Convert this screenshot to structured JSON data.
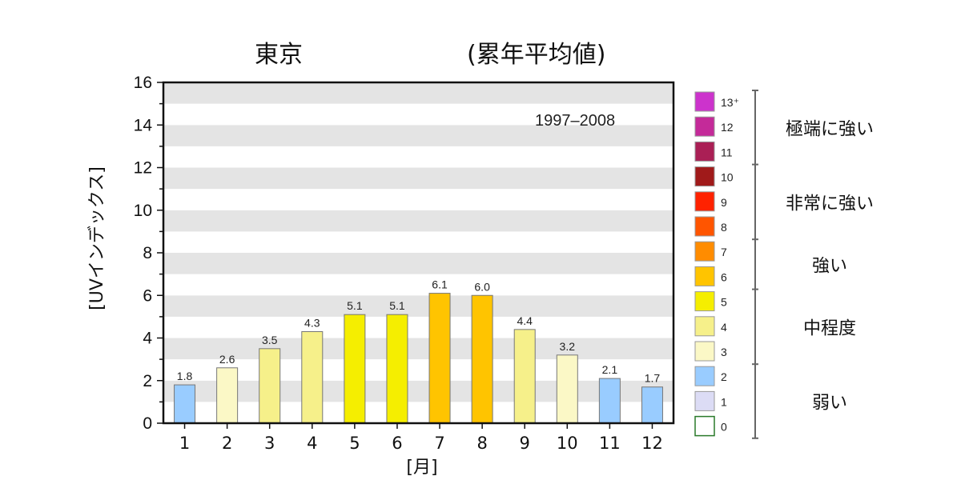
{
  "chart_data": {
    "type": "bar",
    "title": "東京",
    "subtitle": "(累年平均値)",
    "period": "1997–2008",
    "xlabel": "[月]",
    "ylabel": "[UVインデックス]",
    "ylim": [
      0,
      16
    ],
    "y_ticks": [
      "0",
      "2",
      "4",
      "6",
      "8",
      "10",
      "12",
      "14",
      "16"
    ],
    "categories": [
      "1",
      "2",
      "3",
      "4",
      "5",
      "6",
      "7",
      "8",
      "9",
      "10",
      "11",
      "12"
    ],
    "values": [
      1.8,
      2.6,
      3.5,
      4.3,
      5.1,
      5.1,
      6.1,
      6.0,
      4.4,
      3.2,
      2.1,
      1.7
    ],
    "value_labels": [
      "1.8",
      "2.6",
      "3.5",
      "4.3",
      "5.1",
      "5.1",
      "6.1",
      "6.0",
      "4.4",
      "3.2",
      "2.1",
      "1.7"
    ],
    "grid": "horizontal bands",
    "legend_position": "right",
    "legend": {
      "scale": [
        {
          "label": "13⁺",
          "color": "#cc33cc"
        },
        {
          "label": "12",
          "color": "#c42a99"
        },
        {
          "label": "11",
          "color": "#aa1f55"
        },
        {
          "label": "10",
          "color": "#a01a1a"
        },
        {
          "label": "9",
          "color": "#ff2200"
        },
        {
          "label": "8",
          "color": "#ff5500"
        },
        {
          "label": "7",
          "color": "#ff8c00"
        },
        {
          "label": "6",
          "color": "#ffc400"
        },
        {
          "label": "5",
          "color": "#f5ee00"
        },
        {
          "label": "4",
          "color": "#f6f08a"
        },
        {
          "label": "3",
          "color": "#fbf8c6"
        },
        {
          "label": "2",
          "color": "#99ccff"
        },
        {
          "label": "1",
          "color": "#dcdcf5"
        },
        {
          "label": "0",
          "color": "#ffffff"
        }
      ],
      "groups": [
        {
          "label": "極端に強い"
        },
        {
          "label": "非常に強い"
        },
        {
          "label": "強い"
        },
        {
          "label": "中程度"
        },
        {
          "label": "弱い"
        }
      ]
    }
  }
}
